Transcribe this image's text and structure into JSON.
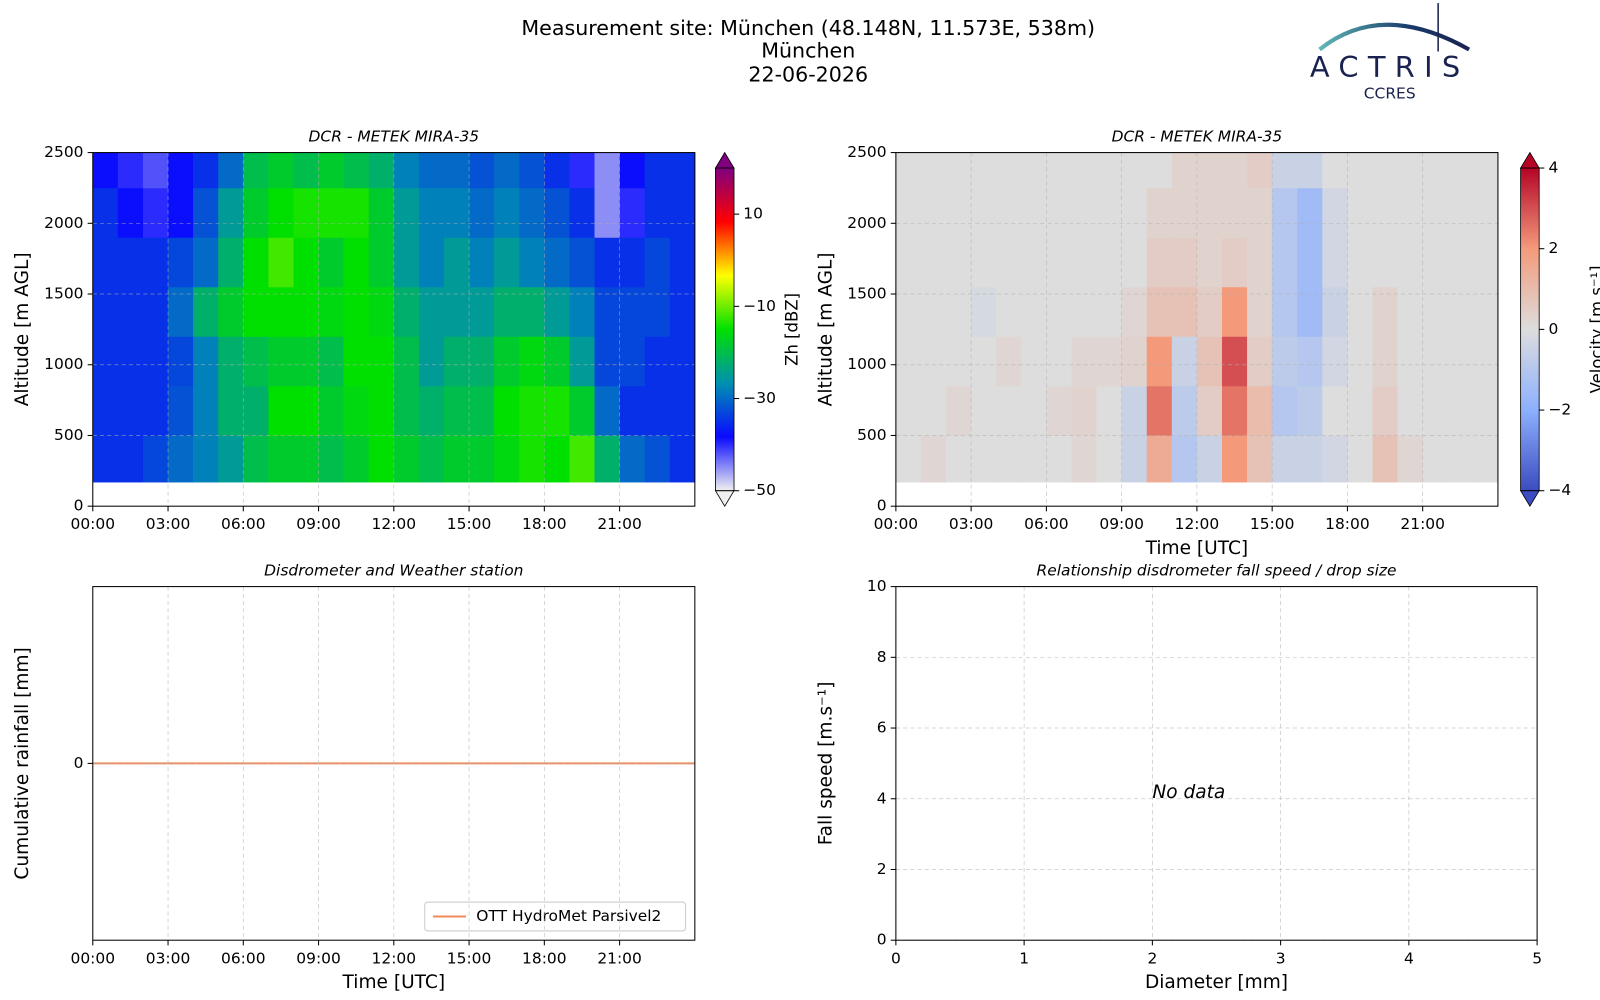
{
  "header": {
    "lines": [
      "Measurement site: München (48.148N, 11.573E, 538m)",
      "München",
      "22-06-2026"
    ]
  },
  "logo": {
    "name": "ACTRIS",
    "subname": "CCRES"
  },
  "chart_data": [
    {
      "type": "heatmap",
      "title": "DCR - METEK MIRA-35",
      "ylabel": "Altitude [m AGL]",
      "x_bins": [
        0,
        1,
        2,
        3,
        4,
        5,
        6,
        7,
        8,
        9,
        10,
        11,
        12,
        13,
        14,
        15,
        16,
        17,
        18,
        19,
        20,
        21,
        22,
        23,
        24
      ],
      "y_bins": [
        170,
        500,
        850,
        1200,
        1550,
        1900,
        2250,
        2500
      ],
      "values": [
        [
          -35,
          -35,
          -35,
          -35,
          -35,
          -35,
          -38
        ],
        [
          -35,
          -35,
          -35,
          -35,
          -35,
          -38,
          -40
        ],
        [
          -33,
          -35,
          -35,
          -35,
          -35,
          -40,
          -42
        ],
        [
          -30,
          -32,
          -33,
          -30,
          -33,
          -38,
          -38
        ],
        [
          -28,
          -28,
          -28,
          -22,
          -30,
          -32,
          -35
        ],
        [
          -25,
          -22,
          -22,
          -18,
          -22,
          -25,
          -30
        ],
        [
          -20,
          -22,
          -20,
          -15,
          -15,
          -18,
          -20
        ],
        [
          -18,
          -15,
          -18,
          -15,
          -12,
          -15,
          -18
        ],
        [
          -18,
          -15,
          -18,
          -15,
          -15,
          -14,
          -20
        ],
        [
          -20,
          -18,
          -20,
          -16,
          -18,
          -14,
          -18
        ],
        [
          -18,
          -16,
          -15,
          -15,
          -15,
          -14,
          -20
        ],
        [
          -15,
          -15,
          -15,
          -16,
          -18,
          -18,
          -22
        ],
        [
          -18,
          -20,
          -20,
          -22,
          -25,
          -25,
          -28
        ],
        [
          -20,
          -22,
          -25,
          -25,
          -28,
          -28,
          -30
        ],
        [
          -18,
          -20,
          -22,
          -25,
          -25,
          -28,
          -30
        ],
        [
          -18,
          -20,
          -22,
          -25,
          -28,
          -30,
          -32
        ],
        [
          -16,
          -15,
          -18,
          -22,
          -25,
          -28,
          -30
        ],
        [
          -14,
          -14,
          -16,
          -22,
          -28,
          -30,
          -32
        ],
        [
          -15,
          -14,
          -18,
          -25,
          -30,
          -32,
          -35
        ],
        [
          -12,
          -18,
          -25,
          -28,
          -32,
          -35,
          -40
        ],
        [
          -22,
          -30,
          -33,
          -33,
          -35,
          -45,
          -45
        ],
        [
          -30,
          -35,
          -33,
          -33,
          -35,
          -40,
          -38
        ],
        [
          -32,
          -35,
          -35,
          -33,
          -33,
          -35,
          -35
        ],
        [
          -35,
          -35,
          -35,
          -35,
          -35,
          -35,
          -35
        ]
      ],
      "xlim": [
        0,
        24
      ],
      "xticks": [
        {
          "value": 0,
          "label": "00:00"
        },
        {
          "value": 3,
          "label": "03:00"
        },
        {
          "value": 6,
          "label": "06:00"
        },
        {
          "value": 9,
          "label": "09:00"
        },
        {
          "value": 12,
          "label": "12:00"
        },
        {
          "value": 15,
          "label": "15:00"
        },
        {
          "value": 18,
          "label": "18:00"
        },
        {
          "value": 21,
          "label": "21:00"
        }
      ],
      "ylim": [
        0,
        2500
      ],
      "yticks": [
        0,
        500,
        1000,
        1500,
        2000,
        2500
      ],
      "grid": true,
      "zlabel": "Zh [dBZ]",
      "zlim": [
        -50,
        20
      ],
      "zticks": [
        {
          "value": -50,
          "label": "−50"
        },
        {
          "value": -30,
          "label": "−30"
        },
        {
          "value": -10,
          "label": "−10"
        },
        10
      ],
      "colormap": [
        "#f0f0f0",
        "#0a0aff",
        "#0090b0",
        "#00e000",
        "#ffff00",
        "#ff0000",
        "#800080"
      ]
    },
    {
      "type": "heatmap",
      "title": "DCR - METEK MIRA-35",
      "ylabel": "Altitude [m AGL]",
      "xlabel": "Time [UTC]",
      "x_bins": [
        0,
        1,
        2,
        3,
        4,
        5,
        6,
        7,
        8,
        9,
        10,
        11,
        12,
        13,
        14,
        15,
        16,
        17,
        18,
        19,
        20,
        21,
        22,
        23,
        24
      ],
      "y_bins": [
        170,
        500,
        850,
        1200,
        1550,
        1900,
        2250,
        2500
      ],
      "values": [
        [
          0,
          0,
          0,
          0,
          0,
          0,
          0
        ],
        [
          0.2,
          0,
          0,
          0,
          0,
          0,
          0
        ],
        [
          0,
          0.2,
          0,
          0,
          0,
          0,
          0
        ],
        [
          0,
          0,
          0,
          -0.2,
          0,
          0,
          0
        ],
        [
          0,
          0,
          0.2,
          0,
          0,
          0,
          0
        ],
        [
          0,
          0,
          0,
          0,
          0,
          0,
          0
        ],
        [
          0,
          0.2,
          0,
          0,
          0,
          0,
          0
        ],
        [
          0.2,
          0.3,
          0.2,
          0,
          0,
          0,
          0
        ],
        [
          0,
          0,
          0.2,
          0,
          0,
          0,
          0
        ],
        [
          -0.5,
          -0.5,
          0.3,
          0.2,
          0,
          0,
          0
        ],
        [
          1.5,
          2.5,
          2,
          0.8,
          0.5,
          0.3,
          0
        ],
        [
          -1,
          -0.8,
          -0.5,
          0.8,
          0.5,
          0.3,
          0.3
        ],
        [
          -0.5,
          0.5,
          0.8,
          0.5,
          0.3,
          0.3,
          0.3
        ],
        [
          2,
          2.5,
          3,
          2,
          0.5,
          0.3,
          0.3
        ],
        [
          0.8,
          1,
          0.5,
          0.3,
          0.3,
          0.3,
          0.5
        ],
        [
          -0.5,
          -1,
          -0.8,
          -1,
          -1,
          -1,
          -0.5
        ],
        [
          -0.5,
          -0.8,
          -1,
          -1.5,
          -1.5,
          -1.5,
          -0.5
        ],
        [
          -0.3,
          0,
          -0.3,
          -0.5,
          -0.3,
          -0.3,
          0
        ],
        [
          0,
          0,
          0,
          0,
          0,
          0,
          0
        ],
        [
          0.8,
          0.5,
          0.3,
          0.3,
          0,
          0,
          0
        ],
        [
          0.2,
          0,
          0,
          0,
          0,
          0,
          0
        ],
        [
          0,
          0,
          0,
          0,
          0,
          0,
          0
        ],
        [
          0,
          0,
          0,
          0,
          0,
          0,
          0
        ],
        [
          0,
          0,
          0,
          0,
          0,
          0,
          0
        ]
      ],
      "xlim": [
        0,
        24
      ],
      "xticks": [
        {
          "value": 0,
          "label": "00:00"
        },
        {
          "value": 3,
          "label": "03:00"
        },
        {
          "value": 6,
          "label": "06:00"
        },
        {
          "value": 9,
          "label": "09:00"
        },
        {
          "value": 12,
          "label": "12:00"
        },
        {
          "value": 15,
          "label": "15:00"
        },
        {
          "value": 18,
          "label": "18:00"
        },
        {
          "value": 21,
          "label": "21:00"
        }
      ],
      "ylim": [
        0,
        2500
      ],
      "yticks": [
        0,
        500,
        1000,
        1500,
        2000,
        2500
      ],
      "grid": true,
      "zlabel": "Velocity [m.s⁻¹]",
      "zlim": [
        -4,
        4
      ],
      "zticks": [
        {
          "value": -4,
          "label": "−4"
        },
        {
          "value": -2,
          "label": "−2"
        },
        0,
        2,
        4
      ],
      "colormap": [
        "#3b4cc0",
        "#8db0fe",
        "#dddddd",
        "#f49a7b",
        "#b40426"
      ]
    },
    {
      "type": "line",
      "title": "Disdrometer and Weather station",
      "xlabel": "Time [UTC]",
      "ylabel": "Cumulative rainfall [mm]",
      "x": [
        0,
        24
      ],
      "series": [
        {
          "name": "OTT HydroMet Parsivel2",
          "color": "#f08a5d",
          "values": [
            0,
            0
          ]
        }
      ],
      "xlim": [
        0,
        24
      ],
      "xticks": [
        {
          "value": 0,
          "label": "00:00"
        },
        {
          "value": 3,
          "label": "03:00"
        },
        {
          "value": 6,
          "label": "06:00"
        },
        {
          "value": 9,
          "label": "09:00"
        },
        {
          "value": 12,
          "label": "12:00"
        },
        {
          "value": 15,
          "label": "15:00"
        },
        {
          "value": 18,
          "label": "18:00"
        },
        {
          "value": 21,
          "label": "21:00"
        }
      ],
      "ylim": [
        -0.055,
        0.055
      ],
      "yticks": [
        0
      ],
      "grid": true,
      "legend": "lower right"
    },
    {
      "type": "scatter",
      "title": "Relationship disdrometer fall speed / drop size",
      "xlabel": "Diameter [mm]",
      "ylabel": "Fall speed [m.s⁻¹]",
      "x": [],
      "values": [],
      "annotation": "No data",
      "xlim": [
        0,
        5
      ],
      "xticks": [
        0,
        1,
        2,
        3,
        4,
        5
      ],
      "ylim": [
        0,
        10
      ],
      "yticks": [
        0,
        2,
        4,
        6,
        8,
        10
      ],
      "grid": true
    }
  ]
}
